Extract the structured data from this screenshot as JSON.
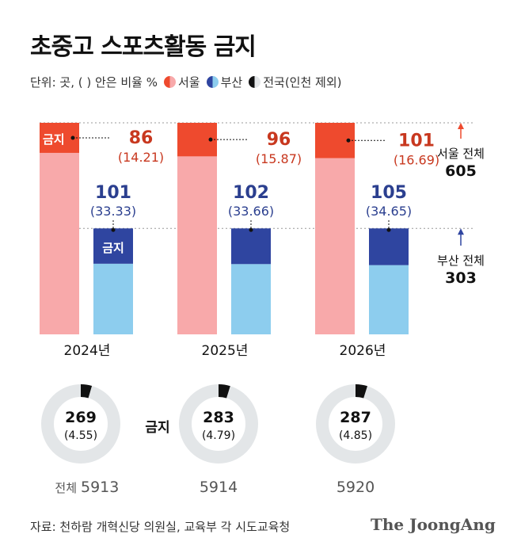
{
  "title": "초중고 스포츠활동 금지",
  "unit_label": "단위: 곳, ( ) 안은 비율 %",
  "legend": [
    {
      "label": "서울",
      "icon": "seoul-half-circle-icon",
      "color": "#ee4a2e"
    },
    {
      "label": "부산",
      "icon": "busan-half-circle-icon",
      "color": "#2f52a8"
    },
    {
      "label": "전국(인천 제외)",
      "icon": "national-half-circle-icon",
      "color": "#111111"
    }
  ],
  "ban_label": "금지",
  "seoul_total_label": "서울 전체",
  "seoul_total_value": "605",
  "busan_total_label": "부산 전체",
  "busan_total_value": "303",
  "national_total_prefix": "전체",
  "source": "자료: 천하람 개혁신당 의원실, 교육부 각 시도교육청",
  "brand": "The JoongAng",
  "colors": {
    "seoul_ban": "#ee4a2e",
    "seoul_rest": "#f8a9aa",
    "busan_ban": "#2f45a0",
    "busan_rest": "#8dcdee",
    "donut_ring": "#e3e6e8",
    "donut_ban": "#111111",
    "seoul_text": "#c8381f",
    "busan_text": "#2b3f8f"
  },
  "chart_data": {
    "type": "bar",
    "categories": [
      "2024년",
      "2025년",
      "2026년"
    ],
    "seoul_total": 605,
    "busan_total": 303,
    "series": [
      {
        "name": "서울",
        "banned": [
          86,
          96,
          101
        ],
        "ratio": [
          "(14.21)",
          "(15.87)",
          "(16.69)"
        ]
      },
      {
        "name": "부산",
        "banned": [
          101,
          102,
          105
        ],
        "ratio": [
          "(33.33)",
          "(33.66)",
          "(34.65)"
        ]
      },
      {
        "name": "전국(인천 제외)",
        "banned": [
          269,
          283,
          287
        ],
        "ratio": [
          "(4.55)",
          "(4.79)",
          "(4.85)"
        ],
        "totals": [
          5913,
          5914,
          5920
        ]
      }
    ]
  }
}
